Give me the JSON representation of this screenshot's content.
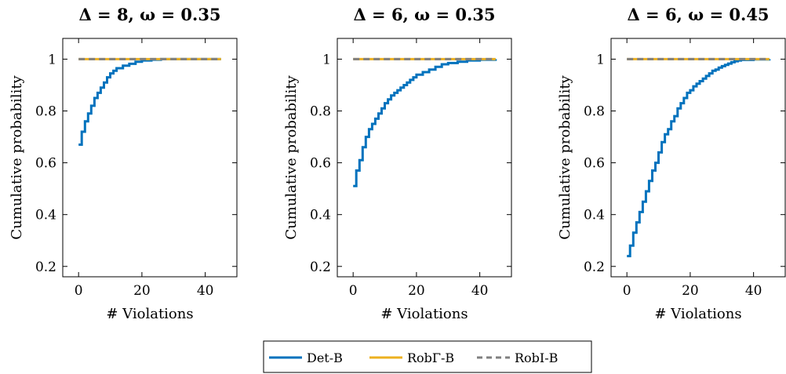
{
  "legend": {
    "entries": [
      {
        "label": "Det-B",
        "color": "#0072BD",
        "style": "solid"
      },
      {
        "label": "RobΓ-B",
        "color": "#EDB120",
        "style": "solid"
      },
      {
        "label": "RobI-B",
        "color": "#808080",
        "style": "dashed"
      }
    ]
  },
  "chart_data": [
    {
      "type": "line",
      "title": "Δ = 8, ω = 0.35",
      "xlabel": "# Violations",
      "ylabel": "Cumulative probability",
      "xlim": [
        -5,
        50
      ],
      "ylim": [
        0.16,
        1.08
      ],
      "xticks": [
        0,
        20,
        40
      ],
      "yticks": [
        0.2,
        0.4,
        0.6,
        0.8,
        1
      ],
      "legend_position": "bottom-center",
      "series": [
        {
          "name": "Det-B",
          "color": "#0072BD",
          "style": "step",
          "x": [
            0,
            1,
            2,
            3,
            4,
            5,
            6,
            7,
            8,
            9,
            10,
            11,
            12,
            14,
            16,
            18,
            20,
            23,
            26
          ],
          "y": [
            0.67,
            0.72,
            0.76,
            0.79,
            0.82,
            0.85,
            0.87,
            0.89,
            0.91,
            0.93,
            0.945,
            0.955,
            0.965,
            0.975,
            0.982,
            0.99,
            0.995,
            0.998,
            1.0
          ]
        },
        {
          "name": "RobΓ-B",
          "color": "#EDB120",
          "style": "solid",
          "x": [
            0,
            45
          ],
          "y": [
            1,
            1
          ]
        },
        {
          "name": "RobI-B",
          "color": "#808080",
          "style": "dashed",
          "x": [
            0,
            45
          ],
          "y": [
            1,
            1
          ]
        }
      ]
    },
    {
      "type": "line",
      "title": "Δ = 6, ω = 0.35",
      "xlabel": "# Violations",
      "ylabel": "Cumulative probability",
      "xlim": [
        -5,
        50
      ],
      "ylim": [
        0.16,
        1.08
      ],
      "xticks": [
        0,
        20,
        40
      ],
      "yticks": [
        0.2,
        0.4,
        0.6,
        0.8,
        1
      ],
      "series": [
        {
          "name": "Det-B",
          "color": "#0072BD",
          "style": "step",
          "x": [
            0,
            1,
            2,
            3,
            4,
            5,
            6,
            7,
            8,
            9,
            10,
            11,
            12,
            13,
            14,
            15,
            16,
            17,
            18,
            19,
            20,
            22,
            24,
            26,
            28,
            30,
            33,
            36,
            40,
            45
          ],
          "y": [
            0.51,
            0.57,
            0.61,
            0.66,
            0.7,
            0.73,
            0.75,
            0.77,
            0.79,
            0.81,
            0.83,
            0.845,
            0.86,
            0.87,
            0.88,
            0.89,
            0.9,
            0.91,
            0.92,
            0.93,
            0.94,
            0.95,
            0.96,
            0.97,
            0.98,
            0.985,
            0.99,
            0.995,
            0.998,
            1.0
          ]
        },
        {
          "name": "RobΓ-B",
          "color": "#EDB120",
          "style": "solid",
          "x": [
            0,
            45
          ],
          "y": [
            1,
            1
          ]
        },
        {
          "name": "RobI-B",
          "color": "#808080",
          "style": "dashed",
          "x": [
            0,
            45
          ],
          "y": [
            1,
            1
          ]
        }
      ]
    },
    {
      "type": "line",
      "title": "Δ = 6, ω = 0.45",
      "xlabel": "# Violations",
      "ylabel": "Cumulative probability",
      "xlim": [
        -5,
        50
      ],
      "ylim": [
        0.16,
        1.08
      ],
      "xticks": [
        0,
        20,
        40
      ],
      "yticks": [
        0.2,
        0.4,
        0.6,
        0.8,
        1
      ],
      "series": [
        {
          "name": "Det-B",
          "color": "#0072BD",
          "style": "step",
          "x": [
            0,
            1,
            2,
            3,
            4,
            5,
            6,
            7,
            8,
            9,
            10,
            11,
            12,
            13,
            14,
            15,
            16,
            17,
            18,
            19,
            20,
            21,
            22,
            23,
            24,
            25,
            26,
            27,
            28,
            29,
            30,
            31,
            32,
            33,
            34,
            35,
            36,
            40,
            45
          ],
          "y": [
            0.24,
            0.28,
            0.33,
            0.37,
            0.41,
            0.45,
            0.49,
            0.53,
            0.57,
            0.6,
            0.64,
            0.68,
            0.71,
            0.73,
            0.76,
            0.78,
            0.81,
            0.83,
            0.85,
            0.87,
            0.88,
            0.895,
            0.905,
            0.915,
            0.925,
            0.935,
            0.945,
            0.955,
            0.96,
            0.967,
            0.973,
            0.978,
            0.983,
            0.988,
            0.992,
            0.995,
            0.997,
            0.999,
            1.0
          ]
        },
        {
          "name": "RobΓ-B",
          "color": "#EDB120",
          "style": "solid",
          "x": [
            0,
            45
          ],
          "y": [
            1,
            1
          ]
        },
        {
          "name": "RobI-B",
          "color": "#808080",
          "style": "dashed",
          "x": [
            0,
            45
          ],
          "y": [
            1,
            1
          ]
        }
      ]
    }
  ]
}
